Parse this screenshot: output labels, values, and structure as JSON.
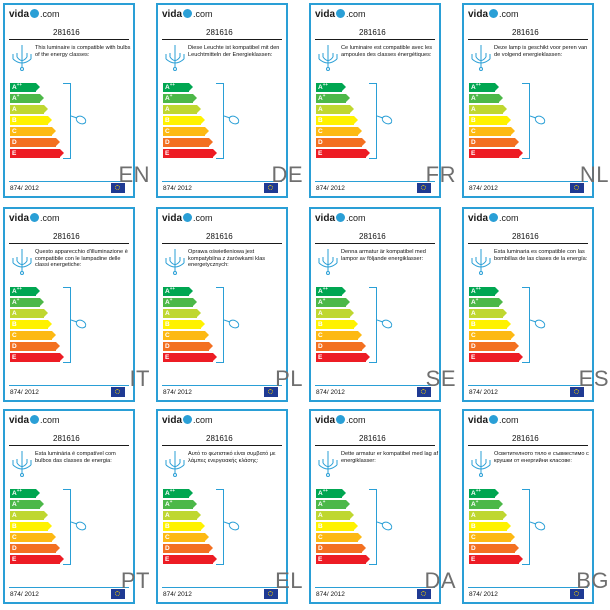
{
  "brand": {
    "name": "vida",
    "suffix": ".com"
  },
  "product_code": "281616",
  "regulation": "874/ 2012",
  "energy_classes": [
    "A++",
    "A+",
    "A",
    "B",
    "C",
    "D",
    "E"
  ],
  "class_colors": [
    "#00a651",
    "#4cb848",
    "#bfd730",
    "#fff200",
    "#fdb913",
    "#f37021",
    "#ed1c24"
  ],
  "accent": "#2a9fd6",
  "labels": [
    {
      "lang": "EN",
      "text": "This luminaire is compatible with bulbs of the energy classes:"
    },
    {
      "lang": "DE",
      "text": "Diese Leuchte ist kompatibel mit den Leuchtmitteln der Energieklassen:"
    },
    {
      "lang": "FR",
      "text": "Ce luminaire est compatible avec les ampoules des classes énergétiques:"
    },
    {
      "lang": "NL",
      "text": "Deze lamp is geschikt voor peren van de volgend energieklassen:"
    },
    {
      "lang": "IT",
      "text": "Questo apparecchio d'illuminazione è compatibile con le lampadine delle classi energetiche:"
    },
    {
      "lang": "PL",
      "text": "Oprawa oświetleniowa jest kompatybilna z żarówkami klas energetycznych:"
    },
    {
      "lang": "SE",
      "text": "Denna armatur är kompatibel med lampor av följande energiklasser:"
    },
    {
      "lang": "ES",
      "text": "Esta luminaria es compatible con las bombillas de las clases de la energía:"
    },
    {
      "lang": "PT",
      "text": "Esta luminária é compatível com bulbos das classes de energia:"
    },
    {
      "lang": "EL",
      "text": "Αυτό το φωτιστικό είναι συμβατό με λάμπες ενεργειακής κλάσης:"
    },
    {
      "lang": "DA",
      "text": "Dette armatur er kompatibel med lag af energiklasser:"
    },
    {
      "lang": "BG",
      "text": "Осветителното тяло е съвместимо с крушки от енергийни класове:"
    }
  ]
}
